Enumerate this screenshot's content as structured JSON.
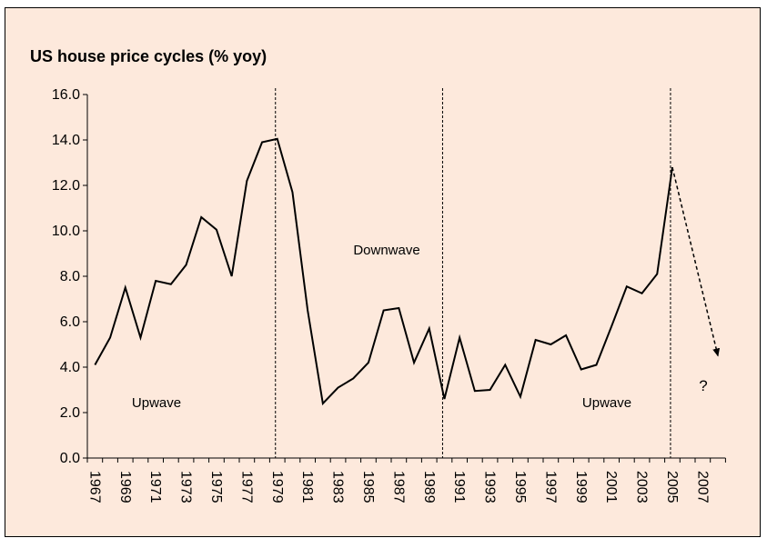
{
  "chart_data": {
    "type": "line",
    "title": "US house price cycles (% yoy)",
    "categories": [
      "1967",
      null,
      "1969",
      null,
      "1971",
      null,
      "1973",
      null,
      "1975",
      null,
      "1977",
      null,
      "1979",
      null,
      "1981",
      null,
      "1983",
      null,
      "1985",
      null,
      "1987",
      null,
      "1989",
      null,
      "1991",
      null,
      "1993",
      null,
      "1995",
      null,
      "1997",
      null,
      "1999",
      null,
      "2001",
      null,
      "2003",
      null,
      "2005",
      null,
      "2007",
      null
    ],
    "series": [
      {
        "color": "#000000",
        "values": [
          4.1,
          5.3,
          7.5,
          5.3,
          7.8,
          7.65,
          8.5,
          10.6,
          10.05,
          8.0,
          12.2,
          13.9,
          14.05,
          11.7,
          6.5,
          2.4,
          3.1,
          3.5,
          4.2,
          6.5,
          6.6,
          4.2,
          5.7,
          2.6,
          5.3,
          2.95,
          3.0,
          4.1,
          2.7,
          5.2,
          5.0,
          5.4,
          3.9,
          4.1,
          5.8,
          7.55,
          7.25,
          8.1,
          12.8,
          null,
          null,
          null
        ]
      }
    ],
    "projection": {
      "x": [
        2005,
        2008
      ],
      "values": [
        12.8,
        4.5
      ]
    },
    "dividers": [
      1979,
      1990,
      2005
    ],
    "annotations": [
      "Upwave",
      "Downwave",
      "Upwave",
      "?"
    ],
    "ylim": [
      0,
      16
    ],
    "yticks": [
      {
        "value": 0,
        "label": "0.0"
      },
      {
        "value": 2,
        "label": "2.0"
      },
      {
        "value": 4,
        "label": "4.0"
      },
      {
        "value": 6,
        "label": "6.0"
      },
      {
        "value": 8,
        "label": "8.0"
      },
      {
        "value": 10,
        "label": "10.0"
      },
      {
        "value": 12,
        "label": "12.0"
      },
      {
        "value": 14,
        "label": "14.0"
      },
      {
        "value": 16,
        "label": "16.0"
      }
    ],
    "background": "#fde9dc"
  }
}
